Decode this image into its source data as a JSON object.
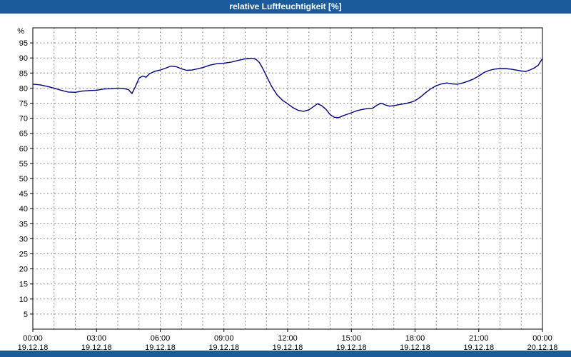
{
  "window": {
    "title": "relative Luftfeuchtigkeit [%]"
  },
  "colors": {
    "titlebar": "#1b5b9c",
    "line": "#000080",
    "grid": "#8a8a8a",
    "plot_border": "#000000",
    "tick_text": "#000000"
  },
  "chart_data": {
    "type": "line",
    "title": "relative Luftfeuchtigkeit [%]",
    "ylabel": "%",
    "xlabel": "",
    "ylim": [
      0,
      100
    ],
    "y_tick_step": 5,
    "y_ticks": [
      95,
      90,
      85,
      80,
      75,
      70,
      65,
      60,
      55,
      50,
      45,
      40,
      35,
      30,
      25,
      20,
      15,
      10,
      5
    ],
    "xlim_hours": [
      0,
      24
    ],
    "x_tick_hours": [
      0,
      3,
      6,
      9,
      12,
      15,
      18,
      21,
      24
    ],
    "x_tick_times": [
      "00:00",
      "03:00",
      "06:00",
      "09:00",
      "12:00",
      "15:00",
      "18:00",
      "21:00",
      "00:00"
    ],
    "x_tick_dates": [
      "19.12.18",
      "19.12.18",
      "19.12.18",
      "19.12.18",
      "19.12.18",
      "19.12.18",
      "19.12.18",
      "19.12.18",
      "20.12.18"
    ],
    "grid": "dashed, vertical every 1h, horizontal every 5 units",
    "legend": "none",
    "series_name": "relative Luftfeuchtigkeit",
    "x": [
      0,
      0.33,
      0.67,
      1.0,
      1.33,
      1.67,
      2.0,
      2.33,
      2.67,
      3.0,
      3.33,
      3.67,
      4.0,
      4.25,
      4.5,
      4.67,
      4.83,
      5.0,
      5.17,
      5.33,
      5.5,
      5.75,
      6.0,
      6.25,
      6.5,
      6.75,
      7.0,
      7.25,
      7.5,
      7.75,
      8.0,
      8.33,
      8.67,
      9.0,
      9.33,
      9.67,
      10.0,
      10.17,
      10.33,
      10.5,
      10.67,
      10.83,
      11.0,
      11.25,
      11.5,
      11.75,
      12.0,
      12.25,
      12.5,
      12.75,
      13.0,
      13.25,
      13.4,
      13.6,
      13.8,
      14.0,
      14.2,
      14.4,
      14.6,
      14.8,
      15.0,
      15.25,
      15.5,
      15.75,
      16.0,
      16.2,
      16.4,
      16.6,
      16.8,
      17.0,
      17.25,
      17.5,
      17.75,
      18.0,
      18.25,
      18.5,
      18.75,
      19.0,
      19.25,
      19.5,
      19.75,
      20.0,
      20.25,
      20.5,
      20.75,
      21.0,
      21.25,
      21.5,
      21.75,
      22.0,
      22.25,
      22.5,
      22.75,
      23.0,
      23.2,
      23.4,
      23.6,
      23.8,
      24.0
    ],
    "values": [
      81.3,
      81.1,
      80.6,
      80.0,
      79.3,
      78.7,
      78.6,
      79.0,
      79.2,
      79.3,
      79.7,
      79.8,
      80.0,
      79.9,
      79.5,
      78.2,
      80.5,
      83.3,
      84.0,
      83.6,
      84.8,
      85.6,
      86.0,
      86.6,
      87.3,
      87.1,
      86.4,
      85.9,
      86.0,
      86.4,
      86.8,
      87.6,
      88.1,
      88.3,
      88.6,
      89.2,
      89.7,
      89.8,
      89.9,
      89.6,
      88.5,
      86.5,
      84.0,
      80.5,
      77.8,
      76.0,
      74.8,
      73.5,
      72.6,
      72.3,
      72.8,
      74.0,
      74.8,
      74.2,
      73.0,
      71.2,
      70.3,
      70.2,
      70.8,
      71.3,
      71.8,
      72.5,
      72.9,
      73.2,
      73.3,
      74.3,
      75.0,
      74.4,
      74.0,
      74.2,
      74.5,
      74.8,
      75.2,
      75.8,
      77.0,
      78.5,
      79.8,
      80.8,
      81.4,
      81.7,
      81.4,
      81.3,
      81.7,
      82.3,
      83.0,
      84.0,
      85.2,
      85.9,
      86.3,
      86.5,
      86.5,
      86.3,
      86.0,
      85.7,
      85.5,
      86.0,
      86.6,
      87.6,
      89.8
    ]
  }
}
